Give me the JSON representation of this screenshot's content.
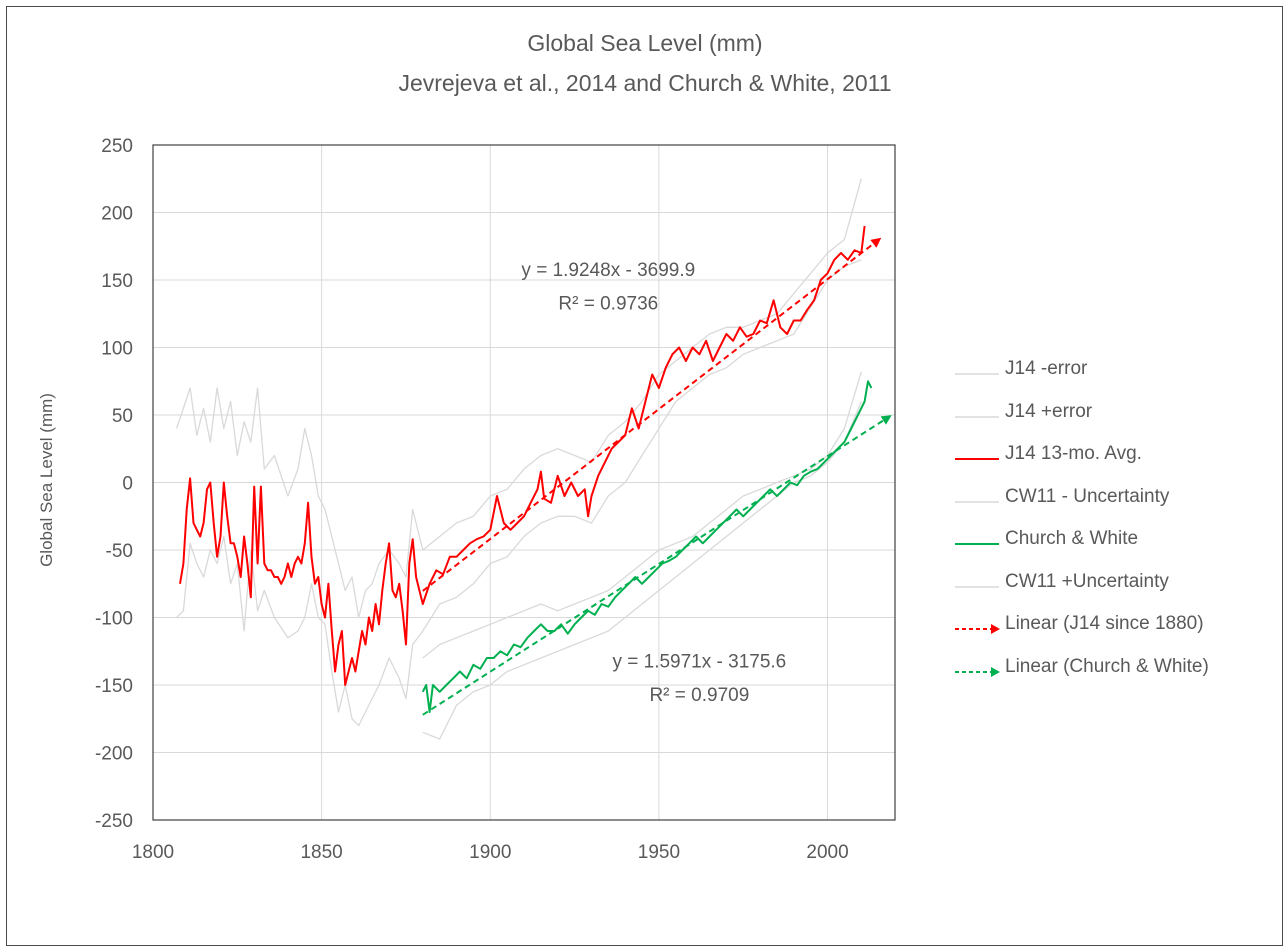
{
  "chart_data": {
    "type": "line",
    "title": "Global Sea Level (mm)",
    "subtitle": "Jevrejeva et al., 2014 and Church & White, 2011",
    "xlabel": "",
    "ylabel": "Global Sea Level (mm)",
    "xlim": [
      1800,
      2020
    ],
    "ylim": [
      -250,
      250
    ],
    "xticks": [
      "1800",
      "1850",
      "1900",
      "1950",
      "2000"
    ],
    "yticks": [
      "250",
      "200",
      "150",
      "100",
      "50",
      "0",
      "-50",
      "-100",
      "-150",
      "-200",
      "-250"
    ],
    "grid": true,
    "legend_position": "right",
    "series": [
      {
        "name": "J14 -error",
        "color": "#d9d9d9",
        "dash": "",
        "x": [
          1807,
          1809,
          1811,
          1813,
          1815,
          1817,
          1819,
          1821,
          1823,
          1825,
          1827,
          1829,
          1831,
          1833,
          1836,
          1840,
          1843,
          1845,
          1847,
          1849,
          1851,
          1853,
          1855,
          1857,
          1859,
          1861,
          1863,
          1865,
          1867,
          1870,
          1873,
          1875,
          1877,
          1880,
          1885,
          1890,
          1895,
          1900,
          1905,
          1910,
          1915,
          1920,
          1925,
          1930,
          1935,
          1940,
          1945,
          1950,
          1955,
          1960,
          1965,
          1970,
          1975,
          1980,
          1985,
          1990,
          1995,
          2000,
          2005,
          2010
        ],
        "y": [
          -100,
          -95,
          -45,
          -60,
          -70,
          -50,
          -60,
          -40,
          -75,
          -60,
          -110,
          -50,
          -95,
          -80,
          -100,
          -115,
          -110,
          -100,
          -75,
          -100,
          -105,
          -140,
          -170,
          -150,
          -175,
          -180,
          -170,
          -160,
          -150,
          -130,
          -145,
          -160,
          -120,
          -110,
          -90,
          -85,
          -75,
          -60,
          -55,
          -40,
          -30,
          -25,
          -25,
          -30,
          -10,
          0,
          20,
          40,
          60,
          70,
          80,
          85,
          95,
          100,
          105,
          110,
          130,
          150,
          160,
          165
        ]
      },
      {
        "name": "J14 +error",
        "color": "#d9d9d9",
        "dash": "",
        "x": [
          1807,
          1809,
          1811,
          1813,
          1815,
          1817,
          1819,
          1821,
          1823,
          1825,
          1827,
          1829,
          1831,
          1833,
          1836,
          1840,
          1843,
          1845,
          1847,
          1849,
          1851,
          1853,
          1855,
          1857,
          1859,
          1861,
          1863,
          1865,
          1867,
          1870,
          1873,
          1875,
          1877,
          1880,
          1885,
          1890,
          1895,
          1900,
          1905,
          1910,
          1915,
          1920,
          1925,
          1930,
          1935,
          1940,
          1945,
          1950,
          1955,
          1960,
          1965,
          1970,
          1975,
          1980,
          1985,
          1990,
          1995,
          2000,
          2005,
          2010
        ],
        "y": [
          40,
          55,
          70,
          35,
          55,
          30,
          70,
          40,
          60,
          20,
          45,
          30,
          70,
          10,
          20,
          -10,
          10,
          40,
          20,
          -10,
          -20,
          -40,
          -60,
          -80,
          -70,
          -100,
          -80,
          -75,
          -60,
          -50,
          -60,
          -70,
          -20,
          -50,
          -40,
          -30,
          -25,
          -10,
          -5,
          10,
          20,
          25,
          20,
          15,
          35,
          45,
          60,
          80,
          90,
          100,
          110,
          115,
          115,
          120,
          125,
          140,
          155,
          170,
          180,
          225
        ]
      },
      {
        "name": "J14 13-mo. Avg.",
        "color": "#ff0000",
        "dash": "",
        "x": [
          1808,
          1809,
          1810,
          1811,
          1812,
          1813,
          1814,
          1815,
          1816,
          1817,
          1818,
          1819,
          1820,
          1821,
          1822,
          1823,
          1824,
          1825,
          1826,
          1827,
          1828,
          1829,
          1830,
          1831,
          1832,
          1833,
          1834,
          1835,
          1836,
          1837,
          1838,
          1839,
          1840,
          1841,
          1842,
          1843,
          1844,
          1845,
          1846,
          1847,
          1848,
          1849,
          1850,
          1851,
          1852,
          1853,
          1854,
          1855,
          1856,
          1857,
          1858,
          1859,
          1860,
          1861,
          1862,
          1863,
          1864,
          1865,
          1866,
          1867,
          1868,
          1869,
          1870,
          1871,
          1872,
          1873,
          1874,
          1875,
          1876,
          1877,
          1878,
          1879,
          1880,
          1882,
          1884,
          1886,
          1888,
          1890,
          1892,
          1894,
          1896,
          1898,
          1900,
          1902,
          1904,
          1906,
          1908,
          1910,
          1912,
          1914,
          1915,
          1916,
          1918,
          1920,
          1922,
          1924,
          1926,
          1928,
          1929,
          1930,
          1932,
          1934,
          1936,
          1938,
          1940,
          1942,
          1944,
          1946,
          1948,
          1950,
          1952,
          1954,
          1956,
          1958,
          1960,
          1962,
          1964,
          1966,
          1968,
          1970,
          1972,
          1974,
          1976,
          1978,
          1980,
          1982,
          1984,
          1986,
          1988,
          1990,
          1992,
          1994,
          1996,
          1998,
          2000,
          2002,
          2004,
          2006,
          2008,
          2010,
          2011
        ],
        "y": [
          -75,
          -60,
          -20,
          3,
          -30,
          -35,
          -40,
          -30,
          -5,
          0,
          -30,
          -55,
          -40,
          0,
          -25,
          -45,
          -45,
          -55,
          -70,
          -40,
          -60,
          -85,
          -3,
          -60,
          -3,
          -60,
          -65,
          -65,
          -70,
          -70,
          -75,
          -70,
          -60,
          -70,
          -60,
          -55,
          -60,
          -45,
          -15,
          -55,
          -75,
          -70,
          -90,
          -100,
          -75,
          -110,
          -140,
          -120,
          -110,
          -150,
          -140,
          -130,
          -140,
          -125,
          -110,
          -120,
          -100,
          -110,
          -90,
          -105,
          -80,
          -60,
          -45,
          -80,
          -85,
          -75,
          -95,
          -120,
          -60,
          -42,
          -70,
          -80,
          -90,
          -75,
          -65,
          -68,
          -55,
          -55,
          -50,
          -45,
          -42,
          -40,
          -35,
          -10,
          -30,
          -35,
          -30,
          -25,
          -15,
          -5,
          8,
          -12,
          -15,
          5,
          -10,
          0,
          -10,
          -5,
          -25,
          -10,
          5,
          15,
          25,
          30,
          35,
          55,
          40,
          60,
          80,
          70,
          85,
          95,
          100,
          90,
          100,
          95,
          105,
          90,
          100,
          110,
          105,
          115,
          108,
          110,
          120,
          118,
          135,
          115,
          110,
          120,
          120,
          128,
          135,
          150,
          155,
          165,
          170,
          165,
          172,
          170,
          190
        ]
      },
      {
        "name": "CW11 - Uncertainty",
        "color": "#d9d9d9",
        "dash": "",
        "x": [
          1880,
          1885,
          1890,
          1895,
          1900,
          1905,
          1910,
          1915,
          1920,
          1925,
          1930,
          1935,
          1940,
          1945,
          1950,
          1955,
          1960,
          1965,
          1970,
          1975,
          1980,
          1985,
          1990,
          1995,
          2000,
          2005,
          2010
        ],
        "y": [
          -185,
          -190,
          -165,
          -155,
          -150,
          -140,
          -135,
          -130,
          -125,
          -120,
          -115,
          -110,
          -100,
          -90,
          -80,
          -70,
          -60,
          -50,
          -40,
          -30,
          -20,
          -10,
          0,
          5,
          15,
          30,
          60
        ]
      },
      {
        "name": "Church & White",
        "color": "#00b050",
        "dash": "",
        "x": [
          1880,
          1881,
          1882,
          1883,
          1885,
          1887,
          1889,
          1891,
          1893,
          1895,
          1897,
          1899,
          1901,
          1903,
          1905,
          1907,
          1909,
          1911,
          1913,
          1915,
          1917,
          1919,
          1921,
          1923,
          1925,
          1927,
          1929,
          1931,
          1933,
          1935,
          1937,
          1939,
          1941,
          1943,
          1945,
          1947,
          1949,
          1951,
          1953,
          1955,
          1957,
          1959,
          1961,
          1963,
          1965,
          1967,
          1969,
          1971,
          1973,
          1975,
          1977,
          1979,
          1981,
          1983,
          1985,
          1987,
          1989,
          1991,
          1993,
          1995,
          1997,
          1999,
          2001,
          2003,
          2005,
          2007,
          2009,
          2011,
          2012,
          2013
        ],
        "y": [
          -155,
          -150,
          -170,
          -150,
          -155,
          -150,
          -145,
          -140,
          -145,
          -135,
          -138,
          -130,
          -130,
          -125,
          -128,
          -120,
          -122,
          -115,
          -110,
          -105,
          -110,
          -110,
          -105,
          -112,
          -105,
          -100,
          -95,
          -98,
          -90,
          -92,
          -85,
          -80,
          -75,
          -70,
          -75,
          -70,
          -65,
          -60,
          -58,
          -55,
          -50,
          -45,
          -40,
          -45,
          -40,
          -35,
          -30,
          -25,
          -20,
          -25,
          -20,
          -15,
          -10,
          -5,
          -10,
          -5,
          0,
          -2,
          5,
          8,
          10,
          15,
          20,
          25,
          30,
          40,
          50,
          60,
          75,
          70
        ]
      },
      {
        "name": "CW11 +Uncertainty",
        "color": "#d9d9d9",
        "dash": "",
        "x": [
          1880,
          1885,
          1890,
          1895,
          1900,
          1905,
          1910,
          1915,
          1920,
          1925,
          1930,
          1935,
          1940,
          1945,
          1950,
          1955,
          1960,
          1965,
          1970,
          1975,
          1980,
          1985,
          1990,
          1995,
          2000,
          2005,
          2010
        ],
        "y": [
          -130,
          -120,
          -115,
          -110,
          -105,
          -100,
          -95,
          -90,
          -95,
          -90,
          -85,
          -80,
          -70,
          -60,
          -50,
          -45,
          -40,
          -30,
          -20,
          -10,
          -5,
          0,
          5,
          10,
          20,
          40,
          82
        ]
      },
      {
        "name": "Linear (J14 since 1880)",
        "color": "#ff0000",
        "dash": "6,4",
        "arrow": true,
        "x": [
          1880,
          2015
        ],
        "y": [
          -80.3,
          179.5
        ]
      },
      {
        "name": "Linear (Church & White)",
        "color": "#00b050",
        "dash": "6,4",
        "arrow": true,
        "x": [
          1880,
          2018
        ],
        "y": [
          -172.1,
          48.3
        ]
      }
    ],
    "annotations": [
      {
        "text": "y = 1.9248x - 3699.9",
        "x": 1935,
        "y": 153
      },
      {
        "text": "R² = 0.9736",
        "x": 1935,
        "y": 128
      },
      {
        "text": "y = 1.5971x - 3175.6",
        "x": 1962,
        "y": -137
      },
      {
        "text": "R² = 0.9709",
        "x": 1962,
        "y": -162
      }
    ]
  }
}
